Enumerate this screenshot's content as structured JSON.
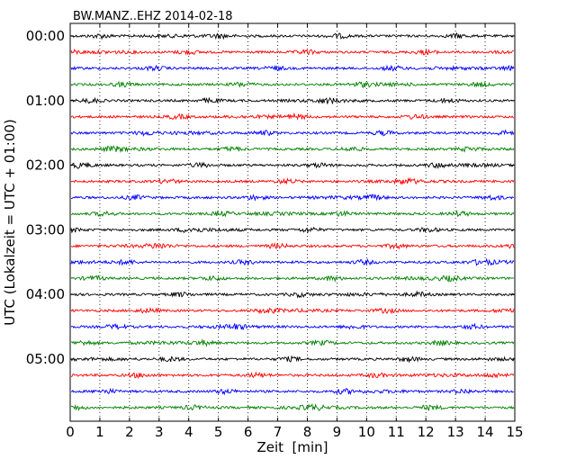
{
  "chart_data": {
    "type": "line",
    "title": "BW.MANZ..EHZ 2014-02-18",
    "xlabel": "Zeit  [min]",
    "ylabel": "UTC (Lokalzeit = UTC + 01:00)",
    "xlim": [
      0,
      15
    ],
    "x_ticks": [
      "0",
      "1",
      "2",
      "3",
      "4",
      "5",
      "6",
      "7",
      "8",
      "9",
      "10",
      "11",
      "12",
      "13",
      "14",
      "15"
    ],
    "y_tick_labels": [
      "00:00",
      "01:00",
      "02:00",
      "03:00",
      "04:00",
      "05:00"
    ],
    "rows_per_hour": 4,
    "minutes_per_row": 15,
    "row_count": 24,
    "row_colors": [
      "#000000",
      "#ff0000",
      "#0000ff",
      "#008000"
    ],
    "grid": "vertical dotted lines at each minute",
    "series": [
      {
        "start_time": "00:00"
      },
      {
        "start_time": "00:15"
      },
      {
        "start_time": "00:30"
      },
      {
        "start_time": "00:45"
      },
      {
        "start_time": "01:00"
      },
      {
        "start_time": "01:15"
      },
      {
        "start_time": "01:30"
      },
      {
        "start_time": "01:45"
      },
      {
        "start_time": "02:00"
      },
      {
        "start_time": "02:15"
      },
      {
        "start_time": "02:30"
      },
      {
        "start_time": "02:45"
      },
      {
        "start_time": "03:00"
      },
      {
        "start_time": "03:15"
      },
      {
        "start_time": "03:30"
      },
      {
        "start_time": "03:45"
      },
      {
        "start_time": "04:00"
      },
      {
        "start_time": "04:15"
      },
      {
        "start_time": "04:30"
      },
      {
        "start_time": "04:45"
      },
      {
        "start_time": "05:00"
      },
      {
        "start_time": "05:15"
      },
      {
        "start_time": "05:30"
      },
      {
        "start_time": "05:45"
      }
    ]
  }
}
